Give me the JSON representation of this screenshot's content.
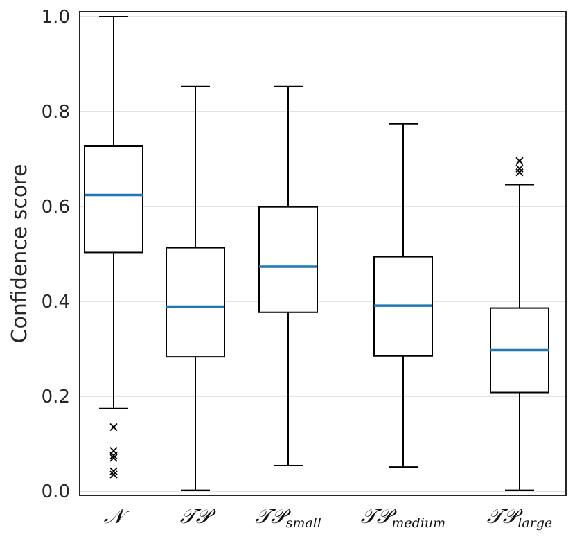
{
  "chart_data": {
    "type": "boxplot",
    "title": "",
    "xlabel": "",
    "ylabel": "Confidence score",
    "ylim": [
      0.0,
      1.0
    ],
    "yticks": [
      0.0,
      0.2,
      0.4,
      0.6,
      0.8,
      1.0
    ],
    "ytick_labels": [
      "0.0",
      "0.2",
      "0.4",
      "0.6",
      "0.8",
      "1.0"
    ],
    "grid": "horizontal",
    "colors": {
      "median": "#1f77b4",
      "box": "#000000",
      "grid": "#d9d9d9",
      "frame": "#262626"
    },
    "categories": [
      {
        "label": "𝒩",
        "sub": ""
      },
      {
        "label": "𝒯𝒫",
        "sub": ""
      },
      {
        "label": "𝒯𝒫",
        "sub": "small"
      },
      {
        "label": "𝒯𝒫",
        "sub": "medium"
      },
      {
        "label": "𝒯𝒫",
        "sub": "large"
      }
    ],
    "boxes": [
      {
        "whisker_low": 0.174,
        "q1": 0.503,
        "median": 0.624,
        "q3": 0.727,
        "whisker_high": 1.0,
        "outliers": [
          0.135,
          0.085,
          0.075,
          0.07,
          0.042,
          0.035
        ]
      },
      {
        "whisker_low": 0.002,
        "q1": 0.283,
        "median": 0.389,
        "q3": 0.513,
        "whisker_high": 0.853,
        "outliers": []
      },
      {
        "whisker_low": 0.054,
        "q1": 0.377,
        "median": 0.473,
        "q3": 0.599,
        "whisker_high": 0.853,
        "outliers": []
      },
      {
        "whisker_low": 0.051,
        "q1": 0.285,
        "median": 0.391,
        "q3": 0.494,
        "whisker_high": 0.774,
        "outliers": []
      },
      {
        "whisker_low": 0.002,
        "q1": 0.208,
        "median": 0.297,
        "q3": 0.386,
        "whisker_high": 0.646,
        "outliers": [
          0.696,
          0.68,
          0.672
        ]
      }
    ]
  }
}
